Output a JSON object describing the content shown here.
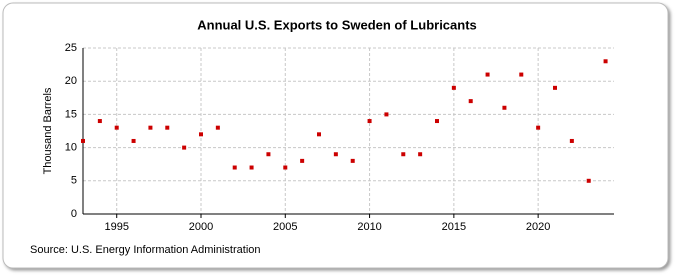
{
  "chart_data": {
    "type": "scatter",
    "title": "Annual U.S. Exports to Sweden of Lubricants",
    "y_label": "Thousand Barrels",
    "source": "Source: U.S. Energy Information Administration",
    "x": [
      1993,
      1994,
      1995,
      1996,
      1997,
      1998,
      1999,
      2000,
      2001,
      2002,
      2003,
      2004,
      2005,
      2006,
      2007,
      2008,
      2009,
      2010,
      2011,
      2012,
      2013,
      2014,
      2015,
      2016,
      2017,
      2018,
      2019,
      2020,
      2021,
      2022,
      2023,
      2024
    ],
    "series": [
      {
        "name": "Exports",
        "color": "#cc0000",
        "values": [
          11,
          14,
          13,
          11,
          13,
          13,
          10,
          12,
          13,
          7,
          7,
          9,
          7,
          8,
          12,
          9,
          8,
          14,
          15,
          9,
          9,
          14,
          19,
          17,
          21,
          16,
          21,
          13,
          19,
          11,
          5,
          23
        ]
      }
    ],
    "xlim": [
      1993,
      2024.5
    ],
    "xticks": [
      1995,
      2000,
      2005,
      2010,
      2015,
      2020
    ],
    "ylim": [
      0,
      25
    ],
    "yticks": [
      0,
      5,
      10,
      15,
      20,
      25
    ],
    "grid": true
  }
}
